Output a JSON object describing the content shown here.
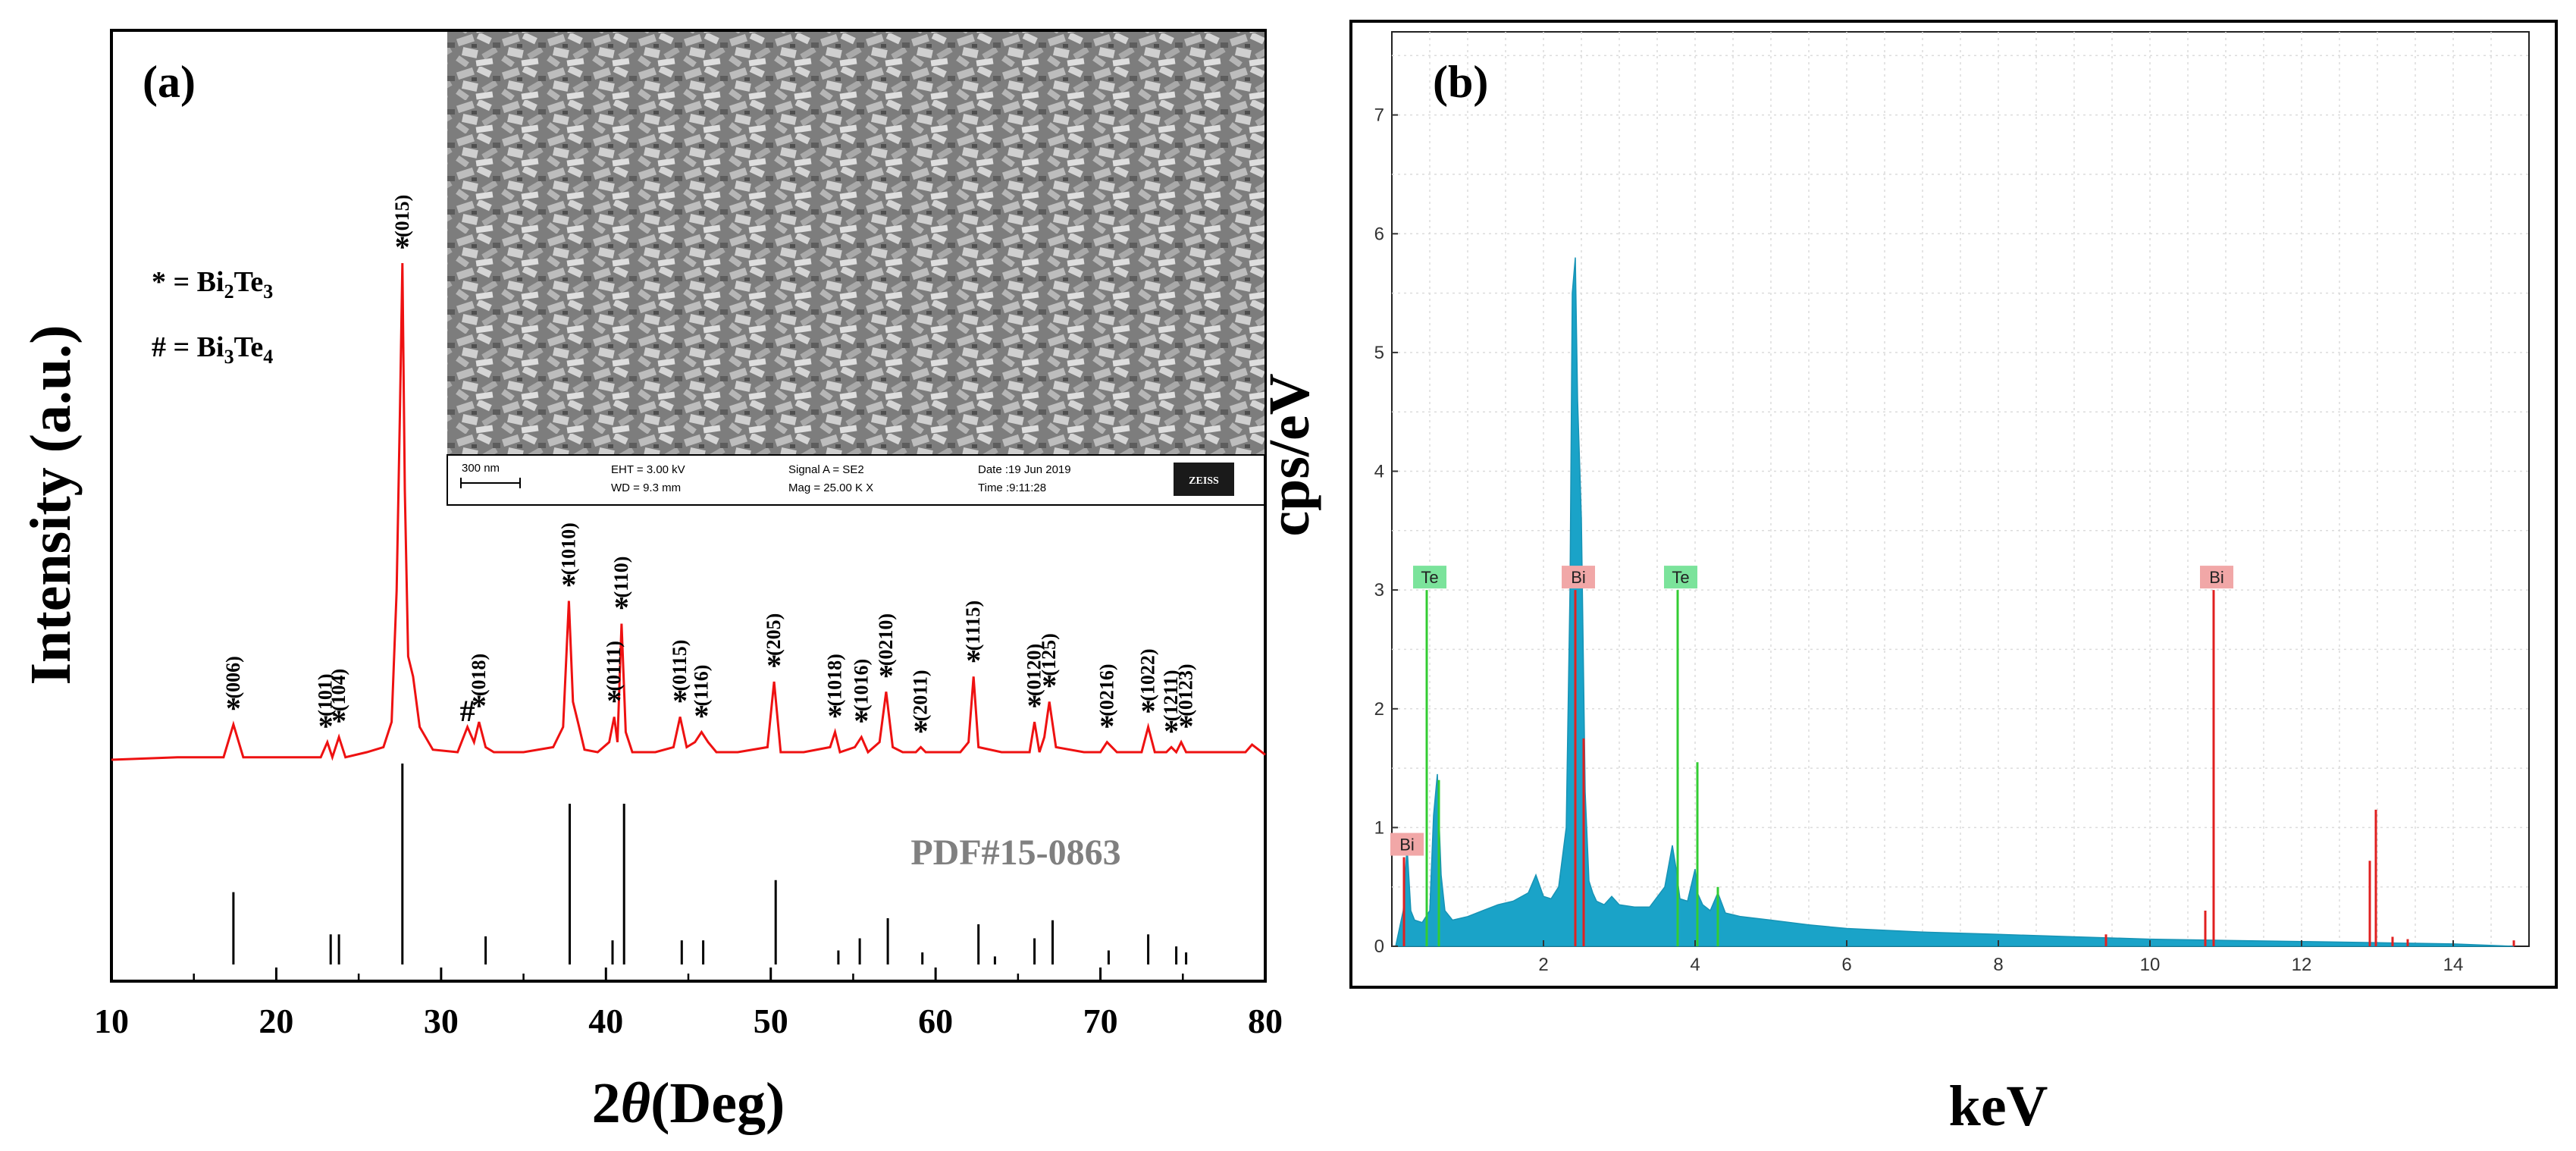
{
  "chart_data": [
    {
      "panel": "(a)",
      "type": "line",
      "xlabel_main": "2",
      "xlabel_theta": "θ",
      "xlabel_unit": "(Deg)",
      "ylabel": "Intensity (a.u.)",
      "xlim": [
        10,
        80
      ],
      "xticks": [
        "10",
        "20",
        "30",
        "40",
        "50",
        "60",
        "70",
        "80"
      ],
      "line_color": "#ee1111",
      "legend": [
        {
          "prefix": "* = Bi",
          "sub1": "2",
          "mid": "Te",
          "sub2": "3"
        },
        {
          "prefix": "# = Bi",
          "sub1": "3",
          "mid": "Te",
          "sub2": "4"
        }
      ],
      "pattern_x": [
        10,
        14,
        16.8,
        17.4,
        18,
        20,
        22.7,
        23.1,
        23.4,
        23.8,
        24.2,
        25.5,
        26.5,
        27.0,
        27.3,
        27.5,
        27.65,
        27.8,
        28.0,
        28.3,
        28.7,
        29.5,
        31.0,
        31.6,
        32.0,
        32.3,
        32.7,
        33.2,
        35,
        36.8,
        37.4,
        37.75,
        38.0,
        38.3,
        38.7,
        39.5,
        40.2,
        40.5,
        40.7,
        40.95,
        41.2,
        41.6,
        43,
        44.1,
        44.5,
        44.9,
        45.4,
        45.8,
        46.2,
        46.7,
        48,
        49.8,
        50.2,
        50.6,
        52,
        53.6,
        53.9,
        54.2,
        55.1,
        55.5,
        55.9,
        56.6,
        57.0,
        57.4,
        58,
        58.8,
        59.1,
        59.4,
        61.5,
        62.0,
        62.3,
        62.6,
        64,
        65.7,
        66.0,
        66.3,
        66.6,
        66.9,
        67.3,
        69,
        70.0,
        70.4,
        71,
        72.5,
        72.9,
        73.3,
        74.0,
        74.3,
        74.6,
        74.9,
        75.2,
        76,
        78.8,
        79.2,
        80
      ],
      "pattern_y": [
        1.5,
        2,
        2,
        8.5,
        2,
        2,
        2,
        5,
        2,
        6,
        2,
        3,
        4,
        9,
        35,
        70,
        100,
        55,
        22,
        18,
        8,
        3.5,
        3,
        8,
        5,
        9,
        4,
        3,
        3,
        4,
        8,
        33,
        13,
        9,
        3.5,
        3,
        5,
        10,
        5,
        28.5,
        7,
        3,
        3,
        4,
        10,
        4,
        5,
        7,
        5,
        3,
        3,
        4,
        17,
        3,
        3,
        4,
        7,
        3,
        4,
        6,
        3,
        5,
        15,
        4,
        3,
        3,
        4,
        3,
        3,
        5,
        18,
        4,
        3,
        3,
        9,
        3,
        6,
        13,
        4,
        3,
        3,
        5,
        3,
        3,
        8,
        3,
        3,
        4,
        3,
        5,
        3,
        3,
        3,
        4.5,
        2.5
      ],
      "peak_markers": [
        {
          "x": 17.4,
          "y": 8.5,
          "sym": "*",
          "label": "(006)"
        },
        {
          "x": 23.0,
          "y": 5,
          "sym": "*",
          "label": "(101)"
        },
        {
          "x": 23.8,
          "y": 6,
          "sym": "*",
          "label": "(104)"
        },
        {
          "x": 27.65,
          "y": 100,
          "sym": "*",
          "label": "(015)"
        },
        {
          "x": 31.6,
          "y": 8,
          "sym": "#",
          "label": ""
        },
        {
          "x": 32.3,
          "y": 9,
          "sym": "*",
          "label": "(018)"
        },
        {
          "x": 37.75,
          "y": 33,
          "sym": "*",
          "label": "(1010)"
        },
        {
          "x": 40.5,
          "y": 10,
          "sym": "*",
          "label": "(0111)"
        },
        {
          "x": 40.95,
          "y": 28.5,
          "sym": "*",
          "label": "(110)"
        },
        {
          "x": 44.5,
          "y": 10,
          "sym": "*",
          "label": "(0115)"
        },
        {
          "x": 45.8,
          "y": 7,
          "sym": "*",
          "label": "(116)"
        },
        {
          "x": 50.2,
          "y": 17,
          "sym": "*",
          "label": "(205)"
        },
        {
          "x": 53.9,
          "y": 7,
          "sym": "*",
          "label": "(1018)"
        },
        {
          "x": 55.5,
          "y": 6,
          "sym": "*",
          "label": "(1016)"
        },
        {
          "x": 57.0,
          "y": 15,
          "sym": "*",
          "label": "(0210)"
        },
        {
          "x": 59.1,
          "y": 4,
          "sym": "*",
          "label": "(2011)"
        },
        {
          "x": 62.3,
          "y": 18,
          "sym": "*",
          "label": "(1115)"
        },
        {
          "x": 66.0,
          "y": 9,
          "sym": "*",
          "label": "(0120)"
        },
        {
          "x": 66.9,
          "y": 13,
          "sym": "*",
          "label": "(125)"
        },
        {
          "x": 70.4,
          "y": 5,
          "sym": "*",
          "label": "(0216)"
        },
        {
          "x": 72.9,
          "y": 8,
          "sym": "*",
          "label": "(1022)"
        },
        {
          "x": 74.3,
          "y": 4,
          "sym": "*",
          "label": "(1211)"
        },
        {
          "x": 75.2,
          "y": 5,
          "sym": "*",
          "label": "(0123)"
        }
      ],
      "reference": {
        "label": "PDF#15-0863",
        "x": [
          17.4,
          23.3,
          23.8,
          27.65,
          32.7,
          37.8,
          40.4,
          41.1,
          44.6,
          45.9,
          50.3,
          54.1,
          55.4,
          57.1,
          59.2,
          62.6,
          63.6,
          66.0,
          67.1,
          70.5,
          72.9,
          74.6,
          75.2
        ],
        "values": [
          36,
          15,
          15,
          100,
          14,
          80,
          12,
          80,
          12,
          12,
          42,
          7,
          13,
          23,
          6,
          20,
          4,
          13,
          22,
          7,
          15,
          9,
          6
        ]
      },
      "inset": {
        "scale_label": "300 nm",
        "eht": "EHT =  3.00 kV",
        "wd": "WD =  9.3 mm",
        "signal": "Signal A = SE2",
        "mag": "Mag =  25.00 K X",
        "date": "Date :19 Jun 2019",
        "time": "Time :9:11:28",
        "brand": "ZEISS"
      }
    },
    {
      "panel": "(b)",
      "type": "area",
      "xlabel": "keV",
      "ylabel": "cps/eV",
      "xlim": [
        0,
        15
      ],
      "ylim": [
        0,
        7.7
      ],
      "xticks": [
        "2",
        "4",
        "6",
        "8",
        "10",
        "12",
        "14"
      ],
      "yticks": [
        "0",
        "1",
        "2",
        "3",
        "4",
        "5",
        "6",
        "7"
      ],
      "spectrum_color": "#1aa3c8",
      "spectrum_x": [
        0.05,
        0.15,
        0.2,
        0.25,
        0.3,
        0.4,
        0.5,
        0.55,
        0.6,
        0.65,
        0.7,
        0.8,
        1.0,
        1.2,
        1.4,
        1.6,
        1.8,
        1.9,
        2.0,
        2.1,
        2.2,
        2.3,
        2.35,
        2.38,
        2.42,
        2.45,
        2.48,
        2.5,
        2.55,
        2.6,
        2.65,
        2.7,
        2.8,
        2.9,
        3.0,
        3.2,
        3.4,
        3.6,
        3.7,
        3.75,
        3.8,
        3.9,
        4.0,
        4.03,
        4.1,
        4.2,
        4.3,
        4.4,
        4.6,
        5.0,
        5.5,
        6.0,
        7.0,
        8.0,
        9.0,
        10.0,
        11.0,
        12.0,
        13.0,
        14.0,
        14.8
      ],
      "spectrum_y": [
        0.0,
        0.3,
        0.85,
        0.3,
        0.22,
        0.2,
        0.3,
        1.1,
        1.45,
        0.6,
        0.3,
        0.22,
        0.25,
        0.3,
        0.35,
        0.38,
        0.45,
        0.6,
        0.42,
        0.4,
        0.5,
        1.0,
        3.0,
        5.5,
        5.8,
        4.6,
        4.0,
        3.6,
        1.3,
        0.55,
        0.45,
        0.38,
        0.35,
        0.42,
        0.35,
        0.33,
        0.33,
        0.5,
        0.85,
        0.65,
        0.4,
        0.38,
        0.65,
        0.45,
        0.35,
        0.3,
        0.45,
        0.28,
        0.25,
        0.22,
        0.18,
        0.15,
        0.12,
        0.1,
        0.08,
        0.06,
        0.05,
        0.04,
        0.03,
        0.02,
        0.0
      ],
      "lines": [
        {
          "element": "Bi",
          "x": 0.16,
          "height": 0.75,
          "color": "#e02020"
        },
        {
          "element": "Te",
          "x": 0.46,
          "height": 3.0,
          "color": "#33cc33"
        },
        {
          "element": "Bi",
          "x": 2.42,
          "height": 3.0,
          "color": "#e02020"
        },
        {
          "element": "Te",
          "x": 3.77,
          "height": 3.0,
          "color": "#33cc33"
        },
        {
          "element": "Bi",
          "x": 10.84,
          "height": 3.0,
          "color": "#e02020"
        }
      ],
      "minor_lines": [
        {
          "x": 0.62,
          "height": 1.4,
          "color": "#33cc33"
        },
        {
          "x": 2.53,
          "height": 1.75,
          "color": "#e02020"
        },
        {
          "x": 4.03,
          "height": 1.55,
          "color": "#33cc33"
        },
        {
          "x": 4.3,
          "height": 0.5,
          "color": "#33cc33"
        },
        {
          "x": 9.42,
          "height": 0.1,
          "color": "#e02020"
        },
        {
          "x": 10.73,
          "height": 0.3,
          "color": "#e02020"
        },
        {
          "x": 12.98,
          "height": 1.15,
          "color": "#e02020"
        },
        {
          "x": 12.9,
          "height": 0.72,
          "color": "#e02020"
        },
        {
          "x": 13.2,
          "height": 0.08,
          "color": "#e02020"
        },
        {
          "x": 13.4,
          "height": 0.06,
          "color": "#e02020"
        },
        {
          "x": 14.8,
          "height": 0.05,
          "color": "#e02020"
        }
      ]
    }
  ]
}
